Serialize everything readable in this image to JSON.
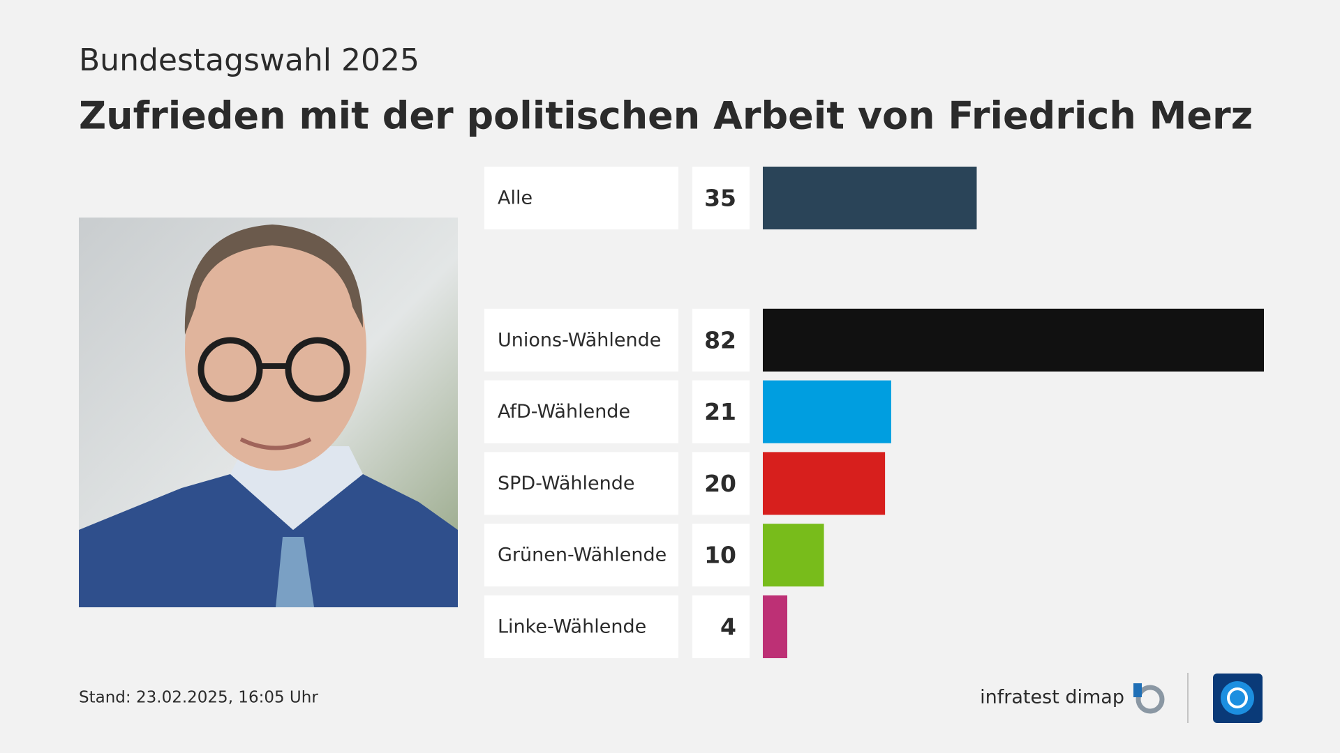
{
  "chart_data": {
    "type": "bar",
    "orientation": "horizontal",
    "subtitle": "Bundestagswahl 2025",
    "title": "Zufrieden mit der politischen Arbeit von Friedrich Merz",
    "categories": [
      "Alle",
      "Unions-Wählende",
      "AfD-Wählende",
      "SPD-Wählende",
      "Grünen-Wählende",
      "Linke-Wählende"
    ],
    "values": [
      35,
      82,
      21,
      20,
      10,
      4
    ],
    "colors": [
      "#2a4458",
      "#111111",
      "#009ee0",
      "#d71f1d",
      "#78bc1b",
      "#bd3075"
    ]
  },
  "footer": {
    "stand_label": "Stand:",
    "date": "23.02.2025, 16:05 Uhr",
    "source": "infratest dimap"
  }
}
